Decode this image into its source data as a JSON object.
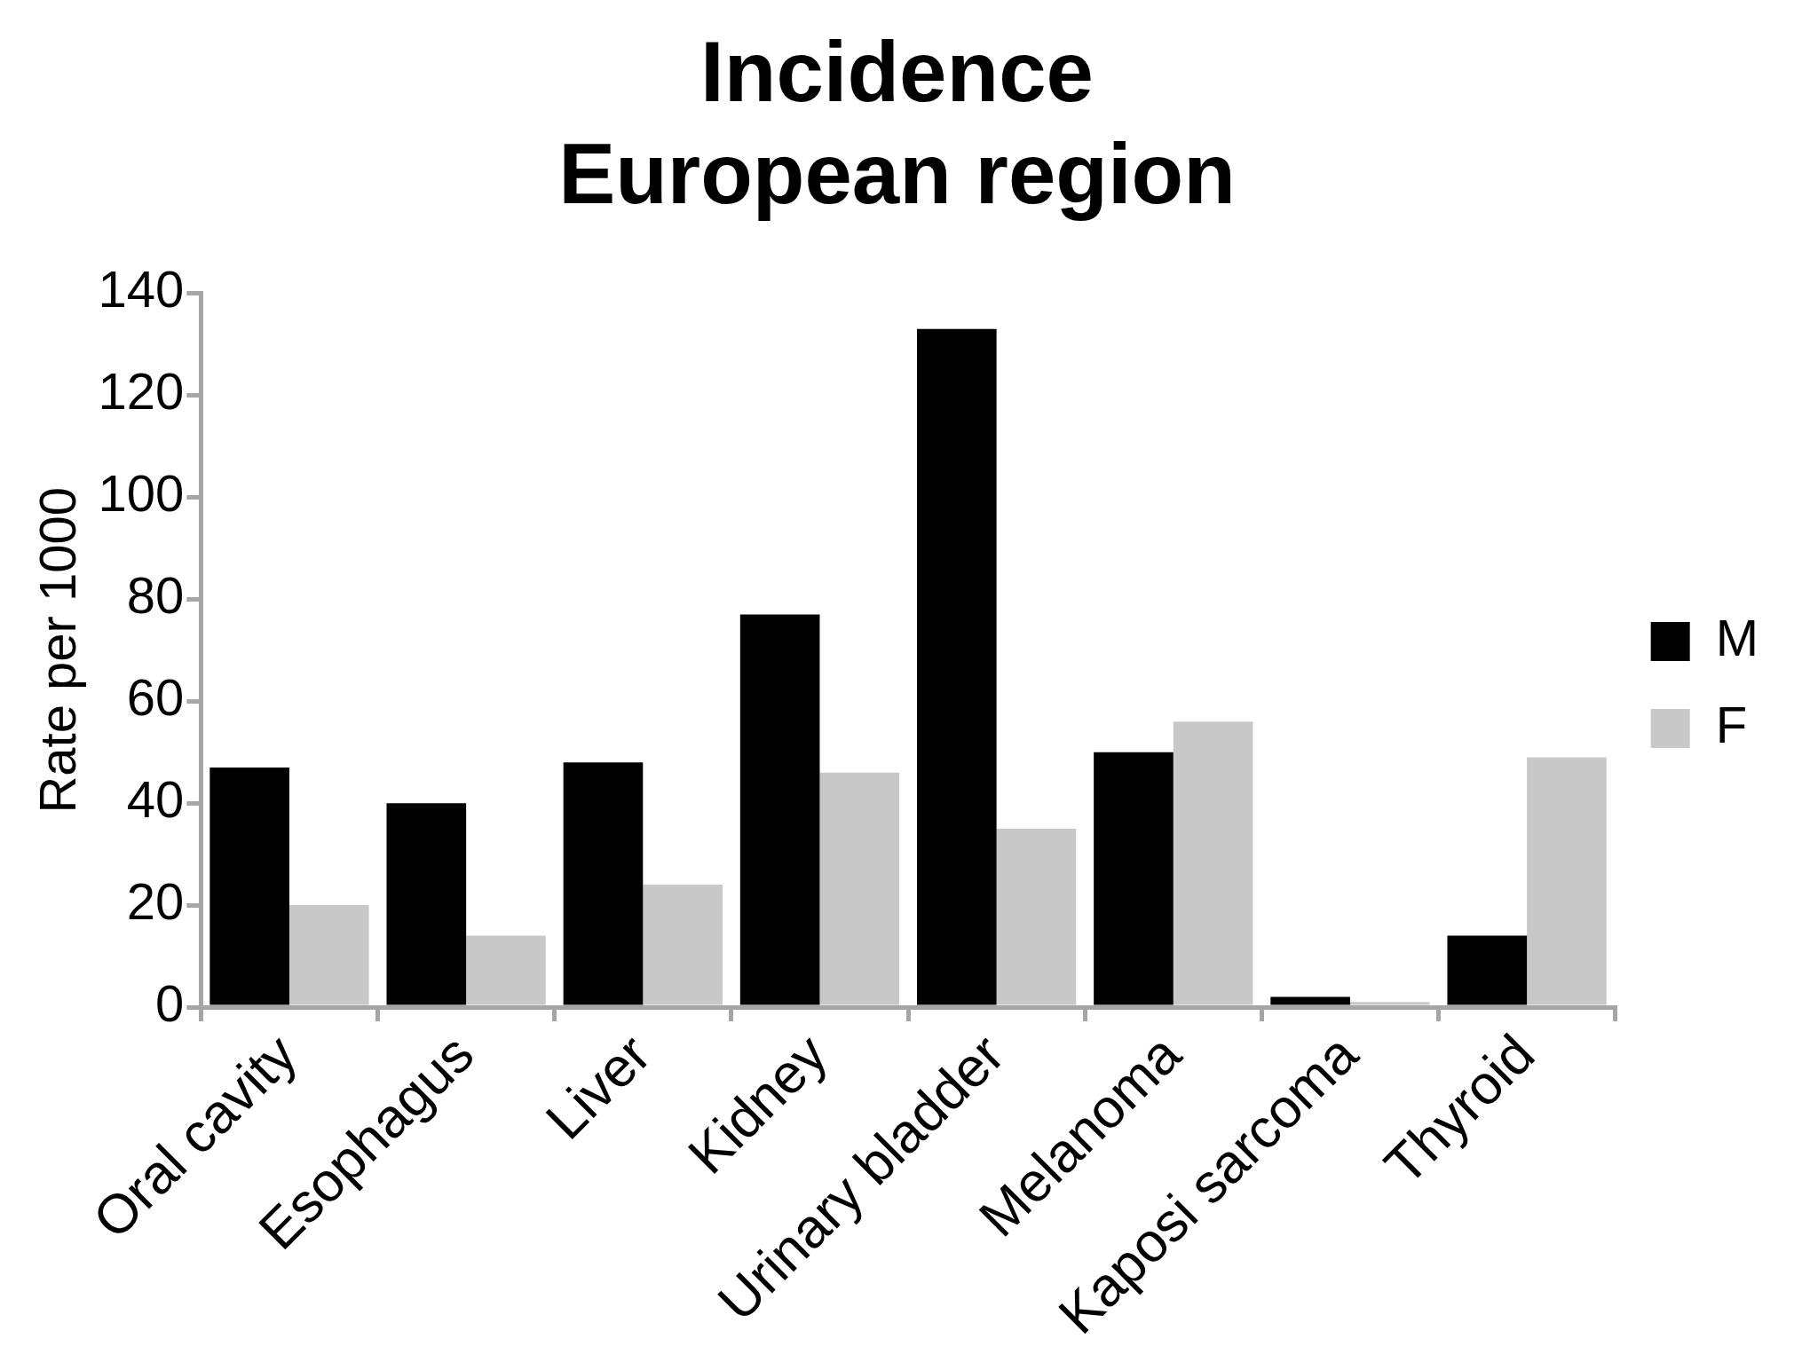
{
  "chart_data": {
    "type": "bar",
    "title": "Incidence\nEuropean region",
    "ylabel": "Rate per 1000",
    "categories": [
      "Oral cavity",
      "Esophagus",
      "Liver",
      "Kidney",
      "Urinary bladder",
      "Melanoma",
      "Kaposi sarcoma",
      "Thyroid"
    ],
    "series": [
      {
        "name": "M",
        "color": "#000000",
        "values": [
          47,
          40,
          48,
          77,
          133,
          50,
          2,
          14
        ]
      },
      {
        "name": "F",
        "color": "#c8c8c8",
        "values": [
          20,
          14,
          24,
          46,
          35,
          56,
          1,
          49
        ]
      }
    ],
    "ylim": [
      0,
      140
    ],
    "yticks": [
      0,
      20,
      40,
      60,
      80,
      100,
      120,
      140
    ],
    "grid": false,
    "legend": "right"
  }
}
